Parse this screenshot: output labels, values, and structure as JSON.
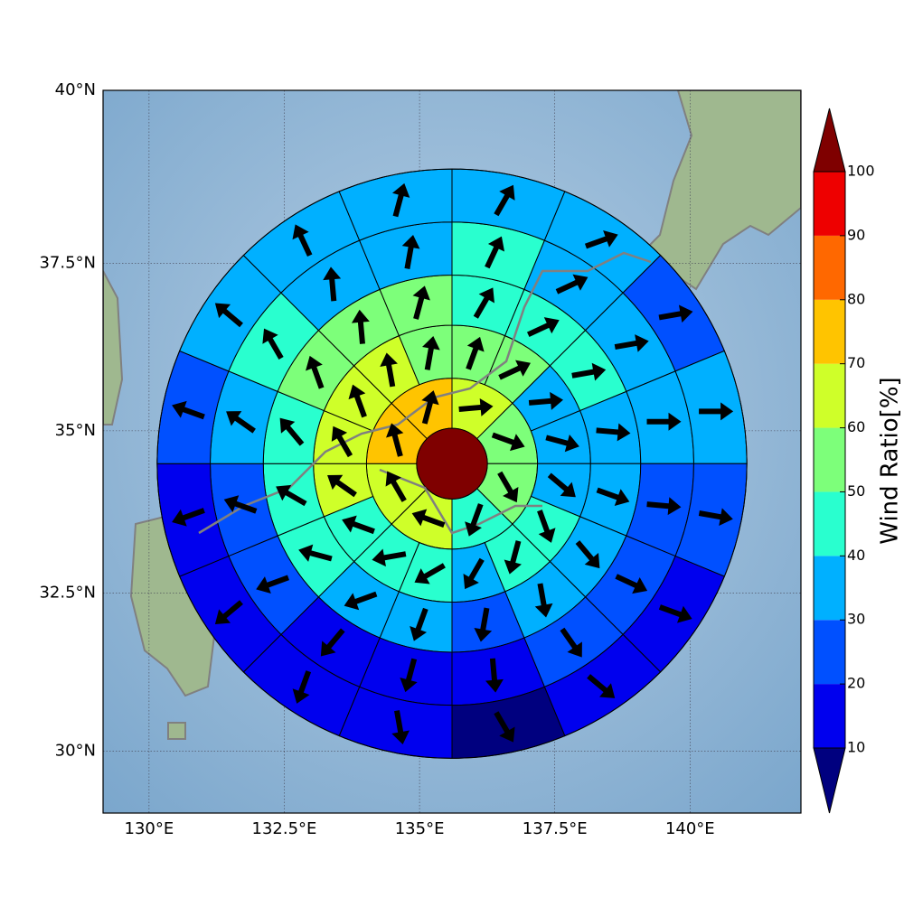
{
  "map": {
    "xlim": [
      129.15,
      142.05
    ],
    "ylim": [
      29,
      40
    ],
    "lon_ticks": [
      {
        "value": 130,
        "label": "130°E"
      },
      {
        "value": 132.5,
        "label": "132.5°E"
      },
      {
        "value": 135,
        "label": "135°E"
      },
      {
        "value": 137.5,
        "label": "137.5°E"
      },
      {
        "value": 140,
        "label": "140°E"
      }
    ],
    "lat_ticks": [
      {
        "value": 30,
        "label": "30°N"
      },
      {
        "value": 32.5,
        "label": "32.5°N"
      },
      {
        "value": 35,
        "label": "35°N"
      },
      {
        "value": 37.5,
        "label": "37.5°N"
      },
      {
        "value": 40,
        "label": "40°N"
      }
    ],
    "grid": true,
    "center": {
      "lon": 135.6,
      "lat": 34.5,
      "value": 100
    },
    "ring_radii_km": [
      60,
      145,
      235,
      320,
      410,
      500
    ],
    "rings": [
      {
        "values": [
          65,
          55,
          55,
          45,
          65,
          65,
          75,
          75
        ],
        "directions": [
          85,
          110,
          150,
          200,
          290,
          330,
          345,
          15
        ]
      },
      {
        "values": [
          55,
          55,
          35,
          35,
          35,
          45,
          45,
          35,
          45,
          45,
          45,
          65,
          65,
          65,
          65,
          55
        ],
        "directions": [
          20,
          65,
          85,
          105,
          130,
          160,
          195,
          210,
          240,
          260,
          290,
          305,
          330,
          340,
          350,
          10
        ]
      },
      {
        "values": [
          45,
          45,
          45,
          35,
          35,
          35,
          35,
          25,
          35,
          35,
          45,
          45,
          45,
          55,
          55,
          55
        ],
        "directions": [
          30,
          65,
          80,
          95,
          110,
          140,
          170,
          190,
          200,
          250,
          285,
          300,
          320,
          340,
          355,
          15
        ]
      },
      {
        "values": [
          45,
          35,
          35,
          35,
          25,
          25,
          25,
          15,
          15,
          15,
          25,
          25,
          35,
          45,
          35,
          35
        ],
        "directions": [
          25,
          65,
          80,
          90,
          95,
          115,
          145,
          175,
          195,
          220,
          250,
          290,
          305,
          330,
          355,
          10
        ]
      },
      {
        "values": [
          35,
          35,
          25,
          35,
          25,
          15,
          15,
          5,
          15,
          15,
          15,
          15,
          25,
          35,
          35,
          35
        ],
        "directions": [
          30,
          70,
          80,
          90,
          100,
          110,
          130,
          150,
          170,
          200,
          230,
          250,
          290,
          310,
          335,
          15
        ]
      }
    ],
    "colorbar": {
      "label": "Wind Ratio[%]",
      "ticks": [
        10,
        20,
        30,
        40,
        50,
        60,
        70,
        80,
        90,
        100
      ],
      "colors": [
        "#00007f",
        "#0000ee",
        "#0050ff",
        "#00b0ff",
        "#29ffcf",
        "#7dff7a",
        "#cfff29",
        "#ffc400",
        "#ff6800",
        "#ee0000",
        "#7f0000"
      ]
    }
  }
}
